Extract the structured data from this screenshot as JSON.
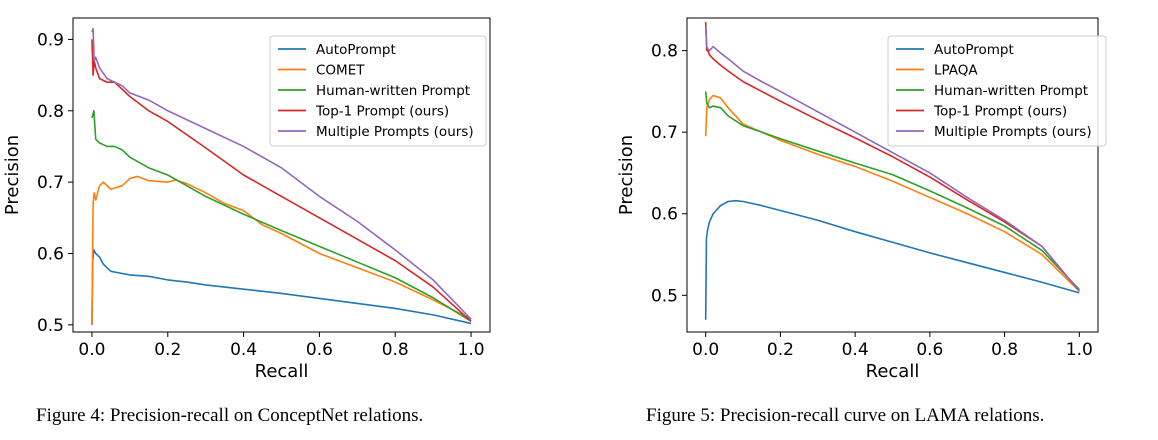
{
  "captions": {
    "left": "Figure 4: Precision-recall on ConceptNet relations.",
    "right": "Figure 5: Precision-recall curve on LAMA relations."
  },
  "chart_data": [
    {
      "type": "line",
      "xlabel": "Recall",
      "ylabel": "Precision",
      "xlim": [
        0.0,
        1.0
      ],
      "ylim": [
        0.49,
        0.93
      ],
      "x_ticks": [
        "0.0",
        "0.2",
        "0.4",
        "0.6",
        "0.8",
        "1.0"
      ],
      "y_ticks": [
        "0.5",
        "0.6",
        "0.7",
        "0.8",
        "0.9"
      ],
      "legend_position": "top-right",
      "series": [
        {
          "name": "AutoPrompt",
          "color": "#1f77b4",
          "points": [
            [
              0.0,
              0.5
            ],
            [
              0.002,
              0.59
            ],
            [
              0.005,
              0.605
            ],
            [
              0.01,
              0.6
            ],
            [
              0.02,
              0.595
            ],
            [
              0.03,
              0.585
            ],
            [
              0.05,
              0.575
            ],
            [
              0.08,
              0.572
            ],
            [
              0.1,
              0.57
            ],
            [
              0.15,
              0.568
            ],
            [
              0.2,
              0.563
            ],
            [
              0.25,
              0.56
            ],
            [
              0.3,
              0.556
            ],
            [
              0.4,
              0.55
            ],
            [
              0.5,
              0.544
            ],
            [
              0.6,
              0.537
            ],
            [
              0.7,
              0.53
            ],
            [
              0.8,
              0.523
            ],
            [
              0.9,
              0.514
            ],
            [
              1.0,
              0.502
            ]
          ]
        },
        {
          "name": "COMET",
          "color": "#ff7f0e",
          "points": [
            [
              0.0,
              0.5
            ],
            [
              0.003,
              0.67
            ],
            [
              0.006,
              0.685
            ],
            [
              0.01,
              0.675
            ],
            [
              0.02,
              0.695
            ],
            [
              0.03,
              0.7
            ],
            [
              0.05,
              0.69
            ],
            [
              0.08,
              0.695
            ],
            [
              0.1,
              0.705
            ],
            [
              0.12,
              0.708
            ],
            [
              0.15,
              0.702
            ],
            [
              0.2,
              0.7
            ],
            [
              0.22,
              0.703
            ],
            [
              0.25,
              0.698
            ],
            [
              0.3,
              0.685
            ],
            [
              0.35,
              0.67
            ],
            [
              0.4,
              0.66
            ],
            [
              0.45,
              0.64
            ],
            [
              0.5,
              0.628
            ],
            [
              0.6,
              0.6
            ],
            [
              0.7,
              0.58
            ],
            [
              0.8,
              0.56
            ],
            [
              0.9,
              0.535
            ],
            [
              1.0,
              0.508
            ]
          ]
        },
        {
          "name": "Human-written Prompt",
          "color": "#2ca02c",
          "points": [
            [
              0.0,
              0.79
            ],
            [
              0.005,
              0.8
            ],
            [
              0.01,
              0.76
            ],
            [
              0.02,
              0.755
            ],
            [
              0.04,
              0.75
            ],
            [
              0.06,
              0.75
            ],
            [
              0.08,
              0.745
            ],
            [
              0.1,
              0.735
            ],
            [
              0.15,
              0.72
            ],
            [
              0.2,
              0.71
            ],
            [
              0.25,
              0.695
            ],
            [
              0.3,
              0.68
            ],
            [
              0.4,
              0.655
            ],
            [
              0.5,
              0.632
            ],
            [
              0.6,
              0.61
            ],
            [
              0.7,
              0.588
            ],
            [
              0.8,
              0.566
            ],
            [
              0.9,
              0.538
            ],
            [
              1.0,
              0.505
            ]
          ]
        },
        {
          "name": "Top-1 Prompt (ours)",
          "color": "#d62728",
          "points": [
            [
              0.0,
              0.9
            ],
            [
              0.003,
              0.85
            ],
            [
              0.006,
              0.87
            ],
            [
              0.01,
              0.86
            ],
            [
              0.02,
              0.845
            ],
            [
              0.04,
              0.84
            ],
            [
              0.06,
              0.84
            ],
            [
              0.08,
              0.83
            ],
            [
              0.1,
              0.82
            ],
            [
              0.15,
              0.8
            ],
            [
              0.2,
              0.785
            ],
            [
              0.3,
              0.748
            ],
            [
              0.4,
              0.71
            ],
            [
              0.5,
              0.68
            ],
            [
              0.6,
              0.65
            ],
            [
              0.7,
              0.62
            ],
            [
              0.8,
              0.59
            ],
            [
              0.9,
              0.553
            ],
            [
              1.0,
              0.505
            ]
          ]
        },
        {
          "name": "Multiple Prompts (ours)",
          "color": "#9467bd",
          "points": [
            [
              0.0,
              0.91
            ],
            [
              0.003,
              0.915
            ],
            [
              0.006,
              0.87
            ],
            [
              0.01,
              0.875
            ],
            [
              0.02,
              0.86
            ],
            [
              0.04,
              0.845
            ],
            [
              0.06,
              0.84
            ],
            [
              0.08,
              0.835
            ],
            [
              0.1,
              0.825
            ],
            [
              0.15,
              0.815
            ],
            [
              0.2,
              0.8
            ],
            [
              0.3,
              0.775
            ],
            [
              0.4,
              0.75
            ],
            [
              0.5,
              0.72
            ],
            [
              0.6,
              0.68
            ],
            [
              0.7,
              0.645
            ],
            [
              0.8,
              0.605
            ],
            [
              0.9,
              0.563
            ],
            [
              1.0,
              0.508
            ]
          ]
        }
      ]
    },
    {
      "type": "line",
      "xlabel": "Recall",
      "ylabel": "Precision",
      "xlim": [
        0.0,
        1.0
      ],
      "ylim": [
        0.455,
        0.84
      ],
      "x_ticks": [
        "0.0",
        "0.2",
        "0.4",
        "0.6",
        "0.8",
        "1.0"
      ],
      "y_ticks": [
        "0.5",
        "0.6",
        "0.7",
        "0.8"
      ],
      "legend_position": "top-right",
      "series": [
        {
          "name": "AutoPrompt",
          "color": "#1f77b4",
          "points": [
            [
              0.0,
              0.47
            ],
            [
              0.002,
              0.57
            ],
            [
              0.005,
              0.58
            ],
            [
              0.01,
              0.59
            ],
            [
              0.02,
              0.6
            ],
            [
              0.04,
              0.61
            ],
            [
              0.06,
              0.615
            ],
            [
              0.08,
              0.616
            ],
            [
              0.1,
              0.615
            ],
            [
              0.15,
              0.61
            ],
            [
              0.2,
              0.604
            ],
            [
              0.3,
              0.592
            ],
            [
              0.4,
              0.578
            ],
            [
              0.5,
              0.565
            ],
            [
              0.6,
              0.552
            ],
            [
              0.7,
              0.54
            ],
            [
              0.8,
              0.528
            ],
            [
              0.9,
              0.516
            ],
            [
              1.0,
              0.503
            ]
          ]
        },
        {
          "name": "LPAQA",
          "color": "#ff7f0e",
          "points": [
            [
              0.0,
              0.695
            ],
            [
              0.003,
              0.73
            ],
            [
              0.01,
              0.74
            ],
            [
              0.02,
              0.745
            ],
            [
              0.04,
              0.742
            ],
            [
              0.06,
              0.73
            ],
            [
              0.1,
              0.71
            ],
            [
              0.15,
              0.7
            ],
            [
              0.2,
              0.69
            ],
            [
              0.3,
              0.673
            ],
            [
              0.4,
              0.658
            ],
            [
              0.5,
              0.64
            ],
            [
              0.6,
              0.62
            ],
            [
              0.7,
              0.6
            ],
            [
              0.8,
              0.578
            ],
            [
              0.9,
              0.55
            ],
            [
              1.0,
              0.505
            ]
          ]
        },
        {
          "name": "Human-written Prompt",
          "color": "#2ca02c",
          "points": [
            [
              0.0,
              0.75
            ],
            [
              0.003,
              0.735
            ],
            [
              0.01,
              0.73
            ],
            [
              0.02,
              0.732
            ],
            [
              0.04,
              0.73
            ],
            [
              0.06,
              0.72
            ],
            [
              0.1,
              0.708
            ],
            [
              0.15,
              0.7
            ],
            [
              0.2,
              0.692
            ],
            [
              0.3,
              0.677
            ],
            [
              0.4,
              0.662
            ],
            [
              0.5,
              0.648
            ],
            [
              0.6,
              0.628
            ],
            [
              0.7,
              0.607
            ],
            [
              0.8,
              0.585
            ],
            [
              0.9,
              0.555
            ],
            [
              1.0,
              0.507
            ]
          ]
        },
        {
          "name": "Top-1 Prompt (ours)",
          "color": "#d62728",
          "points": [
            [
              0.0,
              0.835
            ],
            [
              0.003,
              0.8
            ],
            [
              0.006,
              0.8
            ],
            [
              0.01,
              0.795
            ],
            [
              0.02,
              0.79
            ],
            [
              0.04,
              0.782
            ],
            [
              0.06,
              0.775
            ],
            [
              0.1,
              0.762
            ],
            [
              0.15,
              0.75
            ],
            [
              0.2,
              0.738
            ],
            [
              0.3,
              0.715
            ],
            [
              0.4,
              0.693
            ],
            [
              0.5,
              0.67
            ],
            [
              0.6,
              0.645
            ],
            [
              0.7,
              0.617
            ],
            [
              0.8,
              0.59
            ],
            [
              0.9,
              0.56
            ],
            [
              1.0,
              0.505
            ]
          ]
        },
        {
          "name": "Multiple Prompts (ours)",
          "color": "#9467bd",
          "points": [
            [
              0.0,
              0.83
            ],
            [
              0.003,
              0.805
            ],
            [
              0.006,
              0.802
            ],
            [
              0.01,
              0.8
            ],
            [
              0.02,
              0.805
            ],
            [
              0.04,
              0.797
            ],
            [
              0.06,
              0.79
            ],
            [
              0.1,
              0.775
            ],
            [
              0.15,
              0.762
            ],
            [
              0.2,
              0.75
            ],
            [
              0.3,
              0.725
            ],
            [
              0.4,
              0.7
            ],
            [
              0.5,
              0.675
            ],
            [
              0.6,
              0.65
            ],
            [
              0.7,
              0.62
            ],
            [
              0.8,
              0.592
            ],
            [
              0.9,
              0.56
            ],
            [
              1.0,
              0.505
            ]
          ]
        }
      ]
    }
  ]
}
